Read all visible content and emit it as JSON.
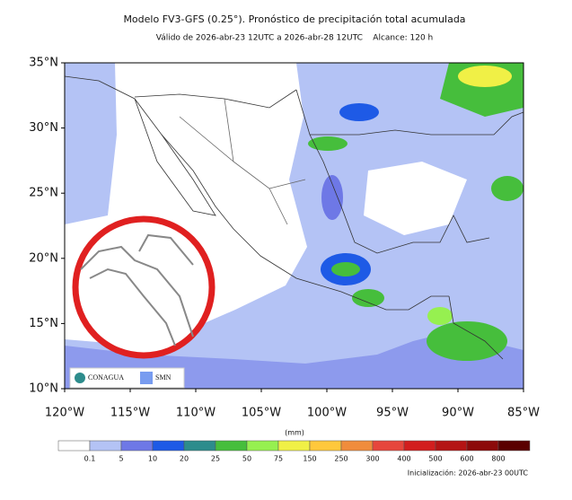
{
  "header": {
    "title": "Modelo FV3-GFS (0.25°). Pronóstico de precipitación total acumulada",
    "subtitle": "Válido de 2026-abr-23 12UTC a 2026-abr-28 12UTC    Alcance: 120 h"
  },
  "map": {
    "lat_labels": [
      "35°N",
      "30°N",
      "25°N",
      "20°N",
      "15°N",
      "10°N"
    ],
    "lon_labels": [
      "120°W",
      "115°W",
      "110°W",
      "105°W",
      "100°W",
      "95°W",
      "90°W",
      "85°W"
    ],
    "logos": [
      "CONAGUA",
      "SMN"
    ]
  },
  "colorbar": {
    "unit": "(mm)",
    "labels": [
      "0.1",
      "5",
      "10",
      "20",
      "25",
      "50",
      "75",
      "150",
      "250",
      "300",
      "400",
      "500",
      "600",
      "800"
    ],
    "colors": [
      "#ffffff",
      "#b4c3f5",
      "#6e78e6",
      "#1e5ae6",
      "#2d8c8c",
      "#46be3c",
      "#96f050",
      "#f0f046",
      "#ffc83c",
      "#f08c3c",
      "#e6463c",
      "#d21e1e",
      "#b41414",
      "#8c0a0a",
      "#5a0000"
    ]
  },
  "footer": {
    "init": "Inicialización: 2026-abr-23 00UTC"
  }
}
